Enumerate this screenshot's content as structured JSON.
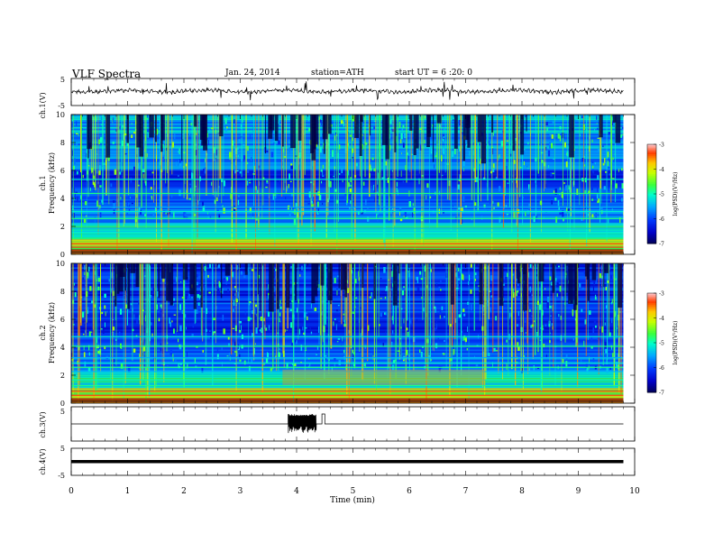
{
  "header": {
    "title": "VLF  Spectra",
    "date": "Jan. 24, 2014",
    "station": "station=ATH",
    "start": "start  UT =   6  :20: 0"
  },
  "colorbar": {
    "label": "log(PSD)(V²/Hz)",
    "ticks": [
      "-3",
      "-4",
      "-5",
      "-6",
      "-7"
    ],
    "range": [
      -7,
      -3
    ]
  },
  "chart_data": [
    {
      "type": "line",
      "panel": "ch1-waveform",
      "ylabel": "ch.1(V)",
      "yticks": [
        "5",
        "-5"
      ],
      "ylim": [
        -5,
        5
      ],
      "description_values": {
        "baseline": 0.0
      }
    },
    {
      "type": "heatmap",
      "panel": "ch1-spectrogram",
      "ylabel": "ch.1\nFrequency (kHz)",
      "yticks": [
        "0",
        "2",
        "4",
        "6",
        "8",
        "10"
      ],
      "ylim": [
        0,
        10
      ],
      "xlim": [
        0,
        9.8
      ],
      "zlim": [
        -7,
        -3
      ]
    },
    {
      "type": "heatmap",
      "panel": "ch2-spectrogram",
      "ylabel": "ch.2\nFrequency (kHz)",
      "yticks": [
        "0",
        "2",
        "4",
        "6",
        "8",
        "10"
      ],
      "ylim": [
        0,
        10
      ],
      "xlim": [
        0,
        9.8
      ],
      "zlim": [
        -7,
        -3
      ]
    },
    {
      "type": "line",
      "panel": "ch3-waveform",
      "ylabel": "ch.3(V)",
      "yticks": [
        "5"
      ],
      "ylim": [
        -5,
        5
      ],
      "series": [
        {
          "x": [
            0,
            3.85,
            3.9,
            4.0,
            4.1,
            4.2,
            4.3,
            4.35,
            4.4,
            4.45,
            4.5,
            9.8
          ],
          "y": [
            0,
            0,
            4,
            -3,
            3,
            -4,
            4,
            -2,
            0,
            4,
            0,
            0
          ]
        }
      ]
    },
    {
      "type": "line",
      "panel": "ch4-waveform",
      "ylabel": "ch.4(V)",
      "yticks": [
        "5",
        "-5"
      ],
      "ylim": [
        -5,
        5
      ]
    }
  ],
  "xaxis": {
    "label": "Time  (min)",
    "ticks": [
      "0",
      "1",
      "2",
      "3",
      "4",
      "5",
      "6",
      "7",
      "8",
      "9",
      "10"
    ],
    "xlim": [
      0,
      10
    ]
  }
}
